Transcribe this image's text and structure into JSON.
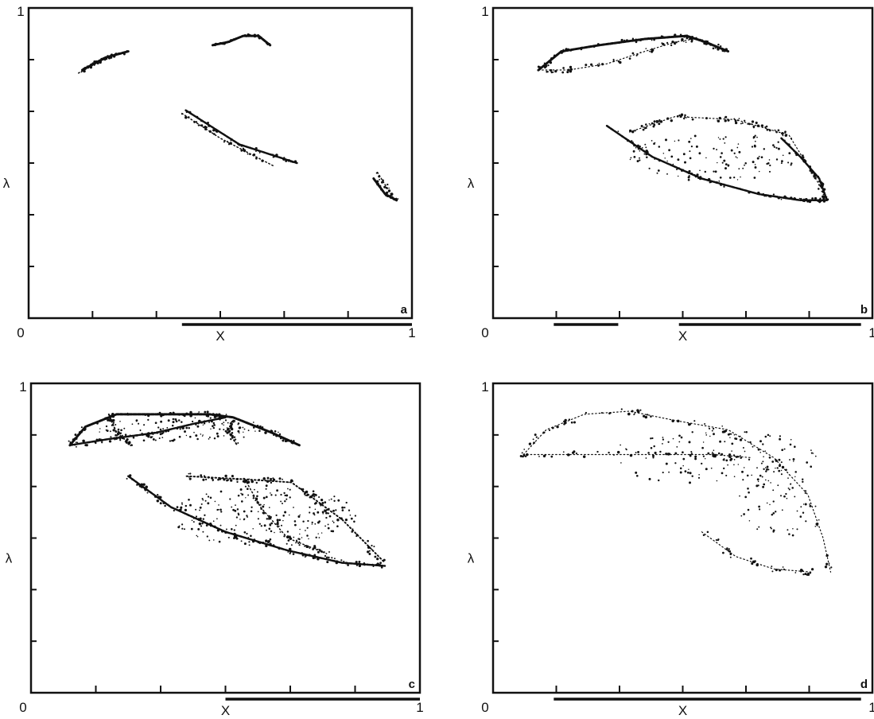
{
  "colors": {
    "ink": "#111111",
    "paper": "#ffffff"
  },
  "chart_data": [
    {
      "type": "scatter",
      "panel_label": "a",
      "xlabel": "X",
      "ylabel": "λ",
      "x_tick_labels": [
        "0",
        "1"
      ],
      "y_tick_labels": [
        "1"
      ],
      "xlim": [
        0,
        1
      ],
      "ylim": [
        0,
        1
      ],
      "ticks": 6,
      "grid": false,
      "range_bars": [
        [
          0.4,
          1.0
        ]
      ],
      "curves": [
        {
          "points": [
            [
              0.14,
              0.8
            ],
            [
              0.2,
              0.84
            ],
            [
              0.26,
              0.86
            ]
          ],
          "width": 3,
          "n": 30,
          "jitter": 0.005
        },
        {
          "points": [
            [
              0.13,
              0.79
            ],
            [
              0.19,
              0.83
            ],
            [
              0.22,
              0.85
            ]
          ],
          "width": 1.5,
          "n": 20,
          "jitter": 0.005
        },
        {
          "points": [
            [
              0.48,
              0.88
            ],
            [
              0.52,
              0.89
            ],
            [
              0.56,
              0.91
            ],
            [
              0.6,
              0.91
            ],
            [
              0.63,
              0.88
            ]
          ],
          "width": 3,
          "n": 30,
          "jitter": 0.004
        },
        {
          "points": [
            [
              0.41,
              0.67
            ],
            [
              0.55,
              0.56
            ],
            [
              0.7,
              0.5
            ]
          ],
          "width": 2.5,
          "n": 35,
          "jitter": 0.005
        },
        {
          "points": [
            [
              0.4,
              0.66
            ],
            [
              0.5,
              0.58
            ],
            [
              0.64,
              0.49
            ]
          ],
          "width": 1.5,
          "n": 30,
          "jitter": 0.005
        },
        {
          "points": [
            [
              0.9,
              0.45
            ],
            [
              0.93,
              0.4
            ],
            [
              0.96,
              0.38
            ]
          ],
          "width": 3,
          "n": 20,
          "jitter": 0.005
        },
        {
          "points": [
            [
              0.91,
              0.47
            ],
            [
              0.93,
              0.43
            ],
            [
              0.95,
              0.39
            ]
          ],
          "width": 1.5,
          "n": 15,
          "jitter": 0.005
        }
      ],
      "clouds": []
    },
    {
      "type": "scatter",
      "panel_label": "b",
      "xlabel": "X",
      "ylabel": "λ",
      "x_tick_labels": [
        "0",
        "1"
      ],
      "y_tick_labels": [
        "1"
      ],
      "xlim": [
        0,
        1
      ],
      "ylim": [
        0,
        1
      ],
      "ticks": 6,
      "grid": false,
      "range_bars": [
        [
          0.16,
          0.33
        ],
        [
          0.49,
          0.97
        ]
      ],
      "curves": [
        {
          "points": [
            [
              0.12,
              0.8
            ],
            [
              0.18,
              0.86
            ],
            [
              0.28,
              0.88
            ],
            [
              0.4,
              0.9
            ],
            [
              0.51,
              0.91
            ],
            [
              0.56,
              0.89
            ],
            [
              0.62,
              0.86
            ]
          ],
          "width": 3,
          "n": 80,
          "jitter": 0.006
        },
        {
          "points": [
            [
              0.12,
              0.8
            ],
            [
              0.2,
              0.8
            ],
            [
              0.3,
              0.82
            ],
            [
              0.4,
              0.86
            ],
            [
              0.48,
              0.89
            ],
            [
              0.53,
              0.9
            ],
            [
              0.6,
              0.87
            ]
          ],
          "width": 1.2,
          "n": 60,
          "jitter": 0.008
        },
        {
          "points": [
            [
              0.3,
              0.62
            ],
            [
              0.42,
              0.52
            ],
            [
              0.55,
              0.45
            ],
            [
              0.7,
              0.4
            ],
            [
              0.81,
              0.38
            ],
            [
              0.88,
              0.38
            ]
          ],
          "width": 2.5,
          "n": 90,
          "jitter": 0.006
        },
        {
          "points": [
            [
              0.36,
              0.6
            ],
            [
              0.48,
              0.65
            ],
            [
              0.64,
              0.64
            ],
            [
              0.78,
              0.59
            ],
            [
              0.88,
              0.39
            ]
          ],
          "width": 1.2,
          "n": 90,
          "jitter": 0.008
        },
        {
          "points": [
            [
              0.76,
              0.58
            ],
            [
              0.81,
              0.52
            ],
            [
              0.86,
              0.45
            ],
            [
              0.88,
              0.38
            ]
          ],
          "width": 2.5,
          "n": 30,
          "jitter": 0.004
        }
      ],
      "clouds": [
        {
          "cx": 0.58,
          "cy": 0.52,
          "rx": 0.22,
          "ry": 0.08,
          "n": 120
        }
      ]
    },
    {
      "type": "scatter",
      "panel_label": "c",
      "xlabel": "X",
      "ylabel": "λ",
      "x_tick_labels": [
        "0",
        "1"
      ],
      "y_tick_labels": [
        "1"
      ],
      "xlim": [
        0,
        1
      ],
      "ylim": [
        0,
        1
      ],
      "ticks": 6,
      "grid": false,
      "range_bars": [
        [
          0.5,
          1.0
        ]
      ],
      "curves": [
        {
          "points": [
            [
              0.1,
              0.8
            ],
            [
              0.14,
              0.86
            ],
            [
              0.22,
              0.9
            ],
            [
              0.36,
              0.9
            ],
            [
              0.46,
              0.9
            ],
            [
              0.52,
              0.89
            ],
            [
              0.62,
              0.84
            ],
            [
              0.69,
              0.8
            ]
          ],
          "width": 3,
          "n": 90,
          "jitter": 0.008
        },
        {
          "points": [
            [
              0.1,
              0.8
            ],
            [
              0.2,
              0.82
            ],
            [
              0.32,
              0.84
            ],
            [
              0.42,
              0.87
            ],
            [
              0.5,
              0.89
            ]
          ],
          "width": 2.5,
          "n": 60,
          "jitter": 0.008
        },
        {
          "points": [
            [
              0.2,
              0.9
            ],
            [
              0.22,
              0.84
            ],
            [
              0.26,
              0.8
            ]
          ],
          "width": 2,
          "n": 25,
          "jitter": 0.006
        },
        {
          "points": [
            [
              0.52,
              0.88
            ],
            [
              0.51,
              0.84
            ],
            [
              0.53,
              0.8
            ]
          ],
          "width": 2,
          "n": 20,
          "jitter": 0.006
        },
        {
          "points": [
            [
              0.25,
              0.7
            ],
            [
              0.36,
              0.6
            ],
            [
              0.5,
              0.52
            ],
            [
              0.66,
              0.46
            ],
            [
              0.8,
              0.42
            ],
            [
              0.91,
              0.41
            ]
          ],
          "width": 2.5,
          "n": 110,
          "jitter": 0.01
        },
        {
          "points": [
            [
              0.4,
              0.7
            ],
            [
              0.55,
              0.69
            ],
            [
              0.67,
              0.68
            ],
            [
              0.8,
              0.56
            ],
            [
              0.91,
              0.42
            ]
          ],
          "width": 2,
          "n": 90,
          "jitter": 0.01
        },
        {
          "points": [
            [
              0.55,
              0.69
            ],
            [
              0.59,
              0.6
            ],
            [
              0.66,
              0.5
            ],
            [
              0.76,
              0.45
            ]
          ],
          "width": 1.5,
          "n": 50,
          "jitter": 0.008
        }
      ],
      "clouds": [
        {
          "cx": 0.6,
          "cy": 0.57,
          "rx": 0.24,
          "ry": 0.1,
          "n": 220
        },
        {
          "cx": 0.38,
          "cy": 0.85,
          "rx": 0.22,
          "ry": 0.04,
          "n": 120
        }
      ]
    },
    {
      "type": "scatter",
      "panel_label": "d",
      "xlabel": "X",
      "ylabel": "λ",
      "x_tick_labels": [
        "0",
        "1"
      ],
      "y_tick_labels": [
        "1"
      ],
      "xlim": [
        0,
        1
      ],
      "ylim": [
        0,
        1
      ],
      "ticks": 6,
      "grid": false,
      "range_bars": [
        [
          0.16,
          0.97
        ]
      ],
      "curves": [
        {
          "points": [
            [
              0.08,
              0.77
            ],
            [
              0.14,
              0.85
            ],
            [
              0.24,
              0.9
            ],
            [
              0.36,
              0.91
            ],
            [
              0.48,
              0.88
            ],
            [
              0.62,
              0.85
            ],
            [
              0.74,
              0.76
            ],
            [
              0.83,
              0.64
            ],
            [
              0.87,
              0.5
            ],
            [
              0.89,
              0.39
            ]
          ],
          "width": 1.2,
          "n": 80,
          "jitter": 0.01
        },
        {
          "points": [
            [
              0.08,
              0.77
            ],
            [
              0.2,
              0.77
            ],
            [
              0.34,
              0.77
            ],
            [
              0.46,
              0.77
            ],
            [
              0.58,
              0.77
            ],
            [
              0.68,
              0.76
            ]
          ],
          "width": 1.2,
          "n": 50,
          "jitter": 0.01
        },
        {
          "points": [
            [
              0.55,
              0.52
            ],
            [
              0.64,
              0.44
            ],
            [
              0.74,
              0.4
            ],
            [
              0.84,
              0.39
            ]
          ],
          "width": 1.2,
          "n": 35,
          "jitter": 0.01
        }
      ],
      "clouds": [
        {
          "cx": 0.58,
          "cy": 0.76,
          "rx": 0.28,
          "ry": 0.09,
          "n": 140
        },
        {
          "cx": 0.74,
          "cy": 0.62,
          "rx": 0.1,
          "ry": 0.13,
          "n": 70
        }
      ]
    }
  ]
}
